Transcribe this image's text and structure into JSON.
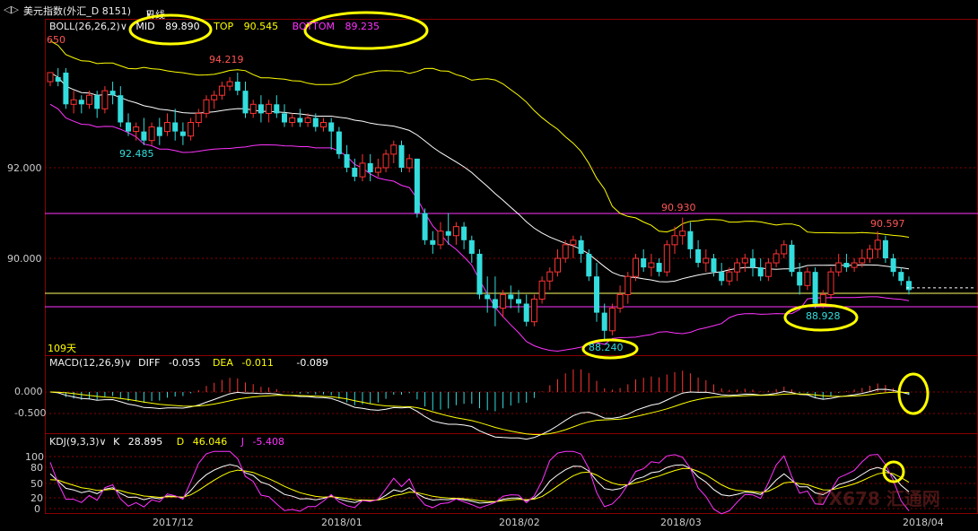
{
  "header": {
    "back_glyph": "◁▷",
    "instrument": "美元指数(外汇_D 8151)",
    "period": "日线",
    "period_arrow": "∨"
  },
  "boll": {
    "name": "BOLL(26,26,2)",
    "mid_label": "MID",
    "mid_value": "89.890",
    "top_label": "TOP",
    "top_value": "90.545",
    "bottom_label": "BOTTOM",
    "bottom_value": "89.235",
    "colors": {
      "mid": "#ffffff",
      "top": "#ffff00",
      "bottom": "#ff33ff"
    }
  },
  "main_labels": {
    "top_left_price": "650",
    "price_high": "94.219",
    "price_low1": "92.485",
    "price_mid": "90.930",
    "price_low2": "88.240",
    "price_right_high": "90.597",
    "price_right_low": "88.928",
    "days": "109天"
  },
  "y_axis": {
    "ticks": [
      "92.000",
      "90.000"
    ]
  },
  "macd": {
    "name": "MACD(12,26,9)",
    "diff_label": "DIFF",
    "diff_value": "-0.055",
    "dea_label": "DEA",
    "dea_value": "-0.011",
    "macd_value": "-0.089",
    "ticks": [
      "0.000",
      "-0.500"
    ]
  },
  "kdj": {
    "name": "KDJ(9,3,3)",
    "k_label": "K",
    "k_value": "28.895",
    "d_label": "D",
    "d_value": "46.046",
    "j_label": "J",
    "j_value": "-5.408",
    "ticks": [
      "100",
      "80",
      "50",
      "20",
      "0"
    ]
  },
  "x_axis": {
    "ticks": [
      "2017/12",
      "2018/01",
      "2018/02",
      "2018/03",
      "2018/04"
    ]
  },
  "watermark": "FX678 汇通网",
  "chart_data": {
    "type": "candlestick",
    "y_range": [
      87.5,
      94.5
    ],
    "candles": [
      {
        "o": 93.9,
        "h": 94.1,
        "c": 94.1,
        "l": 93.8
      },
      {
        "o": 94.0,
        "h": 94.2,
        "c": 93.9,
        "l": 93.8
      },
      {
        "o": 94.1,
        "h": 94.2,
        "c": 93.4,
        "l": 93.3
      },
      {
        "o": 93.4,
        "h": 93.7,
        "c": 93.5,
        "l": 93.2
      },
      {
        "o": 93.5,
        "h": 93.6,
        "c": 93.4,
        "l": 93.2
      },
      {
        "o": 93.4,
        "h": 93.7,
        "c": 93.6,
        "l": 93.3
      },
      {
        "o": 93.6,
        "h": 93.7,
        "c": 93.3,
        "l": 93.1
      },
      {
        "o": 93.3,
        "h": 93.8,
        "c": 93.7,
        "l": 93.2
      },
      {
        "o": 93.7,
        "h": 93.9,
        "c": 93.6,
        "l": 93.4
      },
      {
        "o": 93.6,
        "h": 93.8,
        "c": 93.0,
        "l": 92.9
      },
      {
        "o": 93.0,
        "h": 93.2,
        "c": 92.8,
        "l": 92.7
      },
      {
        "o": 92.8,
        "h": 93.0,
        "c": 92.9,
        "l": 92.6
      },
      {
        "o": 92.8,
        "h": 93.1,
        "c": 92.6,
        "l": 92.5
      },
      {
        "o": 92.6,
        "h": 93.0,
        "c": 92.9,
        "l": 92.5
      },
      {
        "o": 92.9,
        "h": 93.1,
        "c": 92.7,
        "l": 92.5
      },
      {
        "o": 92.8,
        "h": 93.2,
        "c": 93.0,
        "l": 92.7
      },
      {
        "o": 93.0,
        "h": 93.3,
        "c": 92.8,
        "l": 92.6
      },
      {
        "o": 92.8,
        "h": 93.0,
        "c": 92.7,
        "l": 92.5
      },
      {
        "o": 92.7,
        "h": 93.1,
        "c": 93.0,
        "l": 92.6
      },
      {
        "o": 93.0,
        "h": 93.3,
        "c": 93.2,
        "l": 92.9
      },
      {
        "o": 93.2,
        "h": 93.6,
        "c": 93.5,
        "l": 93.1
      },
      {
        "o": 93.5,
        "h": 93.7,
        "c": 93.6,
        "l": 93.3
      },
      {
        "o": 93.6,
        "h": 93.9,
        "c": 93.8,
        "l": 93.5
      },
      {
        "o": 93.8,
        "h": 94.0,
        "c": 93.9,
        "l": 93.7
      },
      {
        "o": 93.9,
        "h": 94.1,
        "c": 93.7,
        "l": 93.6
      },
      {
        "o": 93.7,
        "h": 93.9,
        "c": 93.2,
        "l": 93.1
      },
      {
        "o": 93.2,
        "h": 93.5,
        "c": 93.4,
        "l": 93.1
      },
      {
        "o": 93.4,
        "h": 93.6,
        "c": 93.2,
        "l": 93.0
      },
      {
        "o": 93.2,
        "h": 93.5,
        "c": 93.4,
        "l": 93.0
      },
      {
        "o": 93.4,
        "h": 93.6,
        "c": 93.2,
        "l": 93.1
      },
      {
        "o": 93.2,
        "h": 93.4,
        "c": 93.0,
        "l": 92.9
      },
      {
        "o": 93.0,
        "h": 93.2,
        "c": 93.1,
        "l": 92.9
      },
      {
        "o": 93.1,
        "h": 93.3,
        "c": 93.0,
        "l": 92.9
      },
      {
        "o": 93.0,
        "h": 93.2,
        "c": 93.1,
        "l": 92.9
      },
      {
        "o": 93.1,
        "h": 93.2,
        "c": 92.9,
        "l": 92.8
      },
      {
        "o": 92.9,
        "h": 93.1,
        "c": 93.0,
        "l": 92.8
      },
      {
        "o": 93.0,
        "h": 93.1,
        "c": 92.8,
        "l": 92.4
      },
      {
        "o": 92.8,
        "h": 92.9,
        "c": 92.3,
        "l": 92.2
      },
      {
        "o": 92.3,
        "h": 92.5,
        "c": 92.0,
        "l": 91.9
      },
      {
        "o": 92.0,
        "h": 92.2,
        "c": 91.8,
        "l": 91.7
      },
      {
        "o": 91.8,
        "h": 92.3,
        "c": 92.1,
        "l": 91.7
      },
      {
        "o": 92.1,
        "h": 92.3,
        "c": 91.9,
        "l": 91.7
      },
      {
        "o": 91.9,
        "h": 92.2,
        "c": 92.0,
        "l": 91.8
      },
      {
        "o": 92.0,
        "h": 92.4,
        "c": 92.3,
        "l": 91.9
      },
      {
        "o": 92.3,
        "h": 92.6,
        "c": 92.5,
        "l": 92.1
      },
      {
        "o": 92.5,
        "h": 92.6,
        "c": 92.0,
        "l": 91.9
      },
      {
        "o": 92.0,
        "h": 92.3,
        "c": 92.2,
        "l": 91.9
      },
      {
        "o": 92.2,
        "h": 92.2,
        "c": 91.0,
        "l": 90.9
      },
      {
        "o": 91.0,
        "h": 91.1,
        "c": 90.4,
        "l": 90.3
      },
      {
        "o": 90.4,
        "h": 90.6,
        "c": 90.3,
        "l": 90.1
      },
      {
        "o": 90.3,
        "h": 90.8,
        "c": 90.6,
        "l": 90.2
      },
      {
        "o": 90.6,
        "h": 91.0,
        "c": 90.5,
        "l": 90.3
      },
      {
        "o": 90.5,
        "h": 90.8,
        "c": 90.7,
        "l": 90.3
      },
      {
        "o": 90.7,
        "h": 90.8,
        "c": 90.4,
        "l": 90.2
      },
      {
        "o": 90.4,
        "h": 90.5,
        "c": 90.1,
        "l": 89.9
      },
      {
        "o": 90.1,
        "h": 90.2,
        "c": 89.2,
        "l": 89.1
      },
      {
        "o": 89.2,
        "h": 89.6,
        "c": 89.1,
        "l": 88.8
      },
      {
        "o": 89.1,
        "h": 89.6,
        "c": 88.9,
        "l": 88.5
      },
      {
        "o": 88.9,
        "h": 89.3,
        "c": 89.2,
        "l": 88.7
      },
      {
        "o": 89.2,
        "h": 89.4,
        "c": 89.1,
        "l": 88.9
      },
      {
        "o": 89.1,
        "h": 89.3,
        "c": 89.0,
        "l": 88.8
      },
      {
        "o": 89.0,
        "h": 89.2,
        "c": 88.6,
        "l": 88.5
      },
      {
        "o": 88.6,
        "h": 89.2,
        "c": 89.1,
        "l": 88.5
      },
      {
        "o": 89.1,
        "h": 89.6,
        "c": 89.5,
        "l": 89.0
      },
      {
        "o": 89.5,
        "h": 89.8,
        "c": 89.7,
        "l": 89.3
      },
      {
        "o": 89.7,
        "h": 90.2,
        "c": 90.0,
        "l": 89.6
      },
      {
        "o": 90.0,
        "h": 90.4,
        "c": 90.3,
        "l": 89.9
      },
      {
        "o": 90.3,
        "h": 90.5,
        "c": 90.4,
        "l": 90.0
      },
      {
        "o": 90.4,
        "h": 90.5,
        "c": 90.1,
        "l": 89.9
      },
      {
        "o": 90.1,
        "h": 90.2,
        "c": 89.6,
        "l": 89.5
      },
      {
        "o": 89.6,
        "h": 89.9,
        "c": 88.8,
        "l": 88.6
      },
      {
        "o": 88.8,
        "h": 89.0,
        "c": 88.4,
        "l": 88.2
      },
      {
        "o": 88.4,
        "h": 89.0,
        "c": 88.9,
        "l": 88.3
      },
      {
        "o": 88.9,
        "h": 89.4,
        "c": 89.2,
        "l": 88.8
      },
      {
        "o": 89.2,
        "h": 89.7,
        "c": 89.6,
        "l": 89.0
      },
      {
        "o": 89.6,
        "h": 90.1,
        "c": 90.0,
        "l": 89.5
      },
      {
        "o": 90.0,
        "h": 90.2,
        "c": 89.8,
        "l": 89.7
      },
      {
        "o": 89.8,
        "h": 90.1,
        "c": 89.9,
        "l": 89.6
      },
      {
        "o": 89.9,
        "h": 90.0,
        "c": 89.7,
        "l": 89.6
      },
      {
        "o": 89.7,
        "h": 90.4,
        "c": 90.3,
        "l": 89.6
      },
      {
        "o": 90.3,
        "h": 90.7,
        "c": 90.5,
        "l": 90.1
      },
      {
        "o": 90.5,
        "h": 90.9,
        "c": 90.6,
        "l": 90.3
      },
      {
        "o": 90.6,
        "h": 90.8,
        "c": 90.2,
        "l": 90.0
      },
      {
        "o": 90.2,
        "h": 90.4,
        "c": 89.9,
        "l": 89.8
      },
      {
        "o": 89.9,
        "h": 90.2,
        "c": 90.0,
        "l": 89.7
      },
      {
        "o": 90.0,
        "h": 90.1,
        "c": 89.7,
        "l": 89.6
      },
      {
        "o": 89.7,
        "h": 89.9,
        "c": 89.5,
        "l": 89.4
      },
      {
        "o": 89.5,
        "h": 89.8,
        "c": 89.7,
        "l": 89.4
      },
      {
        "o": 89.7,
        "h": 90.0,
        "c": 89.9,
        "l": 89.5
      },
      {
        "o": 89.9,
        "h": 90.1,
        "c": 90.0,
        "l": 89.7
      },
      {
        "o": 90.0,
        "h": 90.2,
        "c": 89.8,
        "l": 89.6
      },
      {
        "o": 89.8,
        "h": 90.0,
        "c": 89.6,
        "l": 89.5
      },
      {
        "o": 89.6,
        "h": 90.0,
        "c": 89.9,
        "l": 89.5
      },
      {
        "o": 89.9,
        "h": 90.2,
        "c": 90.1,
        "l": 89.8
      },
      {
        "o": 90.1,
        "h": 90.4,
        "c": 90.3,
        "l": 90.0
      },
      {
        "o": 90.3,
        "h": 90.4,
        "c": 89.7,
        "l": 89.6
      },
      {
        "o": 89.7,
        "h": 89.9,
        "c": 89.4,
        "l": 89.2
      },
      {
        "o": 89.4,
        "h": 89.8,
        "c": 89.7,
        "l": 89.3
      },
      {
        "o": 89.7,
        "h": 89.8,
        "c": 89.0,
        "l": 88.9
      },
      {
        "o": 89.0,
        "h": 89.3,
        "c": 89.2,
        "l": 88.9
      },
      {
        "o": 89.2,
        "h": 89.8,
        "c": 89.7,
        "l": 89.1
      },
      {
        "o": 89.7,
        "h": 90.1,
        "c": 89.9,
        "l": 89.6
      },
      {
        "o": 89.9,
        "h": 90.1,
        "c": 89.8,
        "l": 89.7
      },
      {
        "o": 89.8,
        "h": 90.0,
        "c": 89.9,
        "l": 89.7
      },
      {
        "o": 89.9,
        "h": 90.2,
        "c": 90.0,
        "l": 89.8
      },
      {
        "o": 90.0,
        "h": 90.3,
        "c": 90.2,
        "l": 89.9
      },
      {
        "o": 90.2,
        "h": 90.6,
        "c": 90.4,
        "l": 90.0
      },
      {
        "o": 90.4,
        "h": 90.5,
        "c": 90.0,
        "l": 89.9
      },
      {
        "o": 90.0,
        "h": 90.1,
        "c": 89.7,
        "l": 89.6
      },
      {
        "o": 89.7,
        "h": 89.8,
        "c": 89.5,
        "l": 89.4
      },
      {
        "o": 89.5,
        "h": 89.6,
        "c": 89.3,
        "l": 89.2
      }
    ],
    "current_price": 89.35
  }
}
